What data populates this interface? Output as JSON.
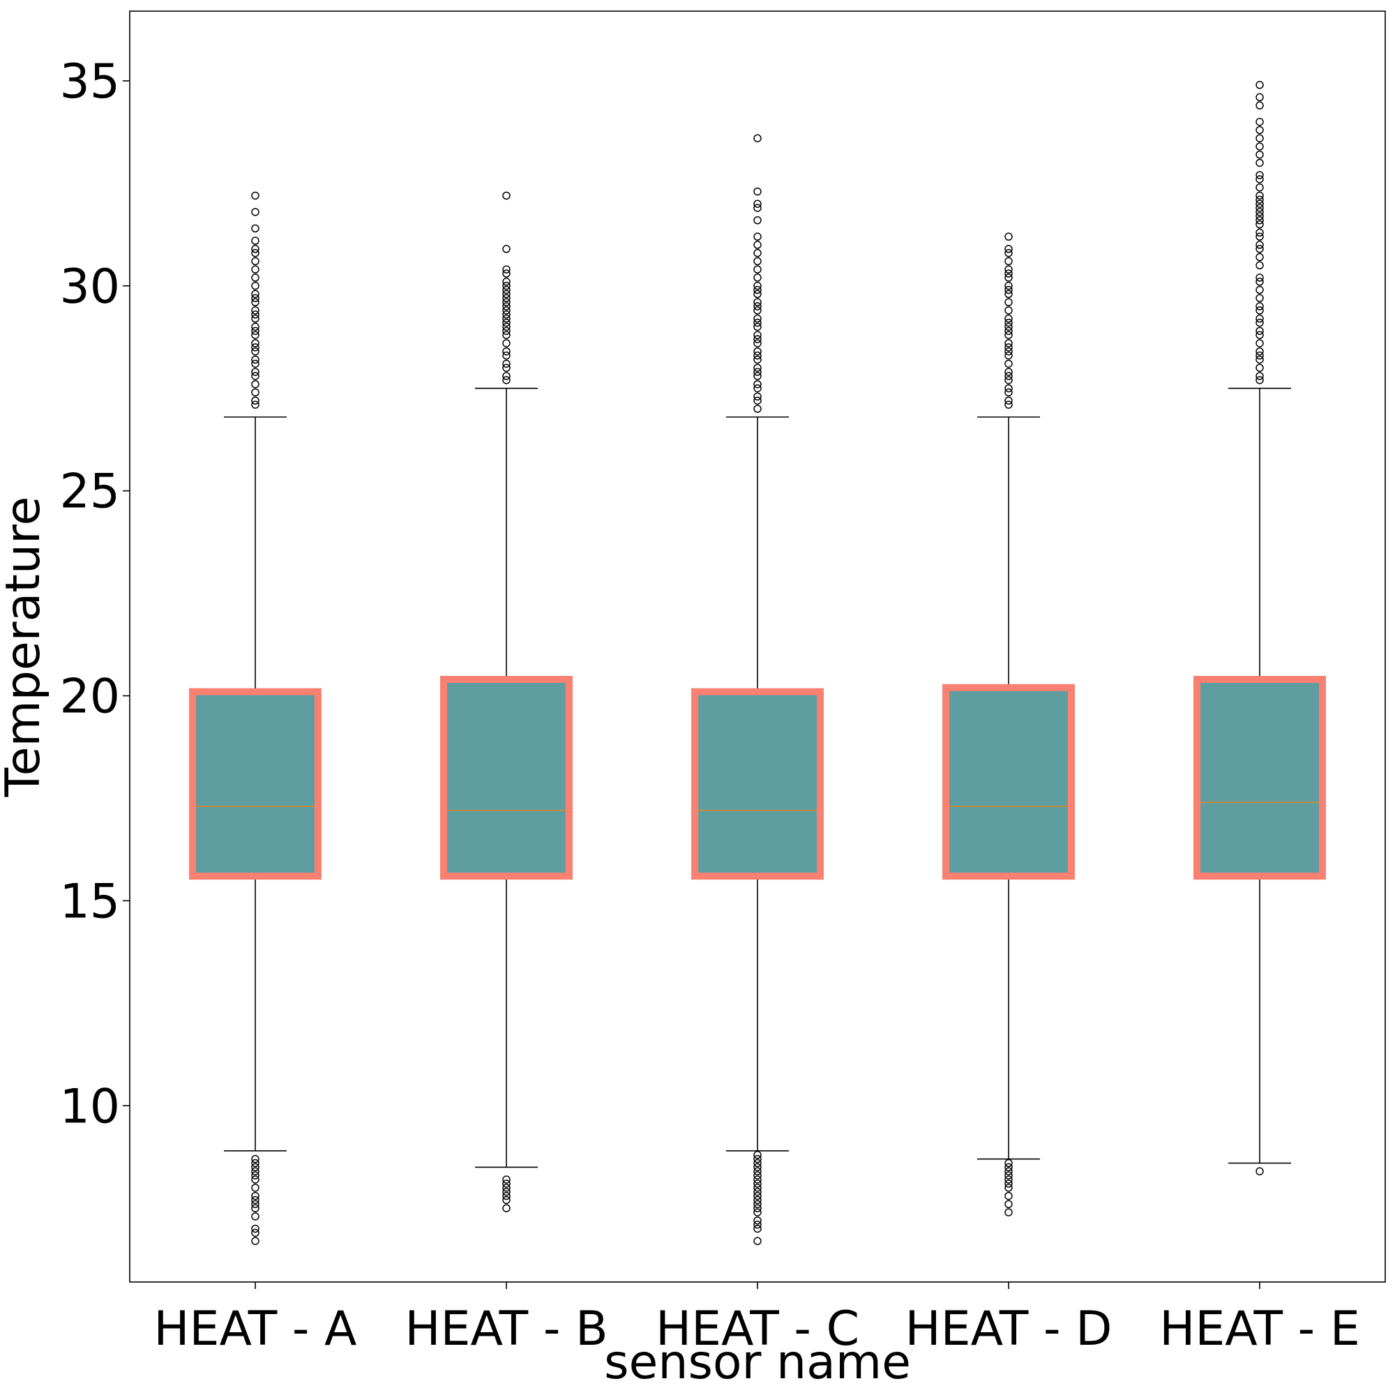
{
  "chart_data": {
    "type": "box",
    "xlabel": "sensor name",
    "ylabel": "Temperature",
    "ylim": [
      5.7,
      36.7
    ],
    "yticks": [
      10,
      15,
      20,
      25,
      30,
      35
    ],
    "grid": false,
    "colors": {
      "box_fill": "#5f9ea0",
      "box_edge": "#fa8072",
      "median": "#d4892f",
      "whisker": "#000000"
    },
    "categories": [
      "HEAT - A",
      "HEAT - B",
      "HEAT - C",
      "HEAT - D",
      "HEAT - E"
    ],
    "boxes": [
      {
        "label": "HEAT - A",
        "whisker_low": 8.9,
        "q1": 15.6,
        "median": 17.3,
        "q3": 20.1,
        "whisker_high": 26.8,
        "outliers_high": [
          27.1,
          27.2,
          27.4,
          27.6,
          27.8,
          27.9,
          28.1,
          28.2,
          28.4,
          28.5,
          28.6,
          28.8,
          28.9,
          29.0,
          29.2,
          29.3,
          29.4,
          29.6,
          29.7,
          29.8,
          30.0,
          30.2,
          30.4,
          30.6,
          30.8,
          30.9,
          31.1,
          31.4,
          31.8,
          32.2
        ],
        "outliers_low": [
          8.7,
          8.6,
          8.5,
          8.4,
          8.3,
          8.2,
          8.0,
          7.8,
          7.7,
          7.6,
          7.5,
          7.3,
          7.0,
          6.9,
          6.7
        ]
      },
      {
        "label": "HEAT - B",
        "whisker_low": 8.5,
        "q1": 15.6,
        "median": 17.2,
        "q3": 20.4,
        "whisker_high": 27.5,
        "outliers_high": [
          27.7,
          27.8,
          28.0,
          28.1,
          28.3,
          28.4,
          28.6,
          28.8,
          28.9,
          29.0,
          29.1,
          29.2,
          29.3,
          29.4,
          29.5,
          29.6,
          29.7,
          29.8,
          29.9,
          30.0,
          30.1,
          30.3,
          30.4,
          30.9,
          32.2
        ],
        "outliers_low": [
          8.2,
          8.1,
          8.0,
          7.9,
          7.8,
          7.7,
          7.5
        ]
      },
      {
        "label": "HEAT - C",
        "whisker_low": 8.9,
        "q1": 15.6,
        "median": 17.2,
        "q3": 20.1,
        "whisker_high": 26.8,
        "outliers_high": [
          27.0,
          27.2,
          27.3,
          27.5,
          27.6,
          27.8,
          27.9,
          28.0,
          28.2,
          28.3,
          28.4,
          28.6,
          28.7,
          28.8,
          29.0,
          29.1,
          29.2,
          29.4,
          29.5,
          29.6,
          29.8,
          29.9,
          30.0,
          30.2,
          30.4,
          30.6,
          30.8,
          31.0,
          31.2,
          31.6,
          31.9,
          32.0,
          32.3,
          33.6
        ],
        "outliers_low": [
          8.8,
          8.7,
          8.6,
          8.5,
          8.4,
          8.3,
          8.2,
          8.1,
          8.0,
          7.9,
          7.8,
          7.7,
          7.6,
          7.5,
          7.4,
          7.2,
          7.1,
          7.0,
          6.7
        ]
      },
      {
        "label": "HEAT - D",
        "whisker_low": 8.7,
        "q1": 15.6,
        "median": 17.3,
        "q3": 20.2,
        "whisker_high": 26.8,
        "outliers_high": [
          27.1,
          27.2,
          27.4,
          27.5,
          27.7,
          27.8,
          27.9,
          28.1,
          28.3,
          28.4,
          28.5,
          28.6,
          28.8,
          28.9,
          29.0,
          29.1,
          29.2,
          29.4,
          29.6,
          29.8,
          29.9,
          30.0,
          30.2,
          30.3,
          30.4,
          30.6,
          30.8,
          30.9,
          31.2
        ],
        "outliers_low": [
          8.6,
          8.5,
          8.4,
          8.3,
          8.2,
          8.1,
          8.0,
          7.8,
          7.6,
          7.4
        ]
      },
      {
        "label": "HEAT - E",
        "whisker_low": 8.6,
        "q1": 15.6,
        "median": 17.4,
        "q3": 20.4,
        "whisker_high": 27.5,
        "outliers_high": [
          27.7,
          27.8,
          28.0,
          28.2,
          28.3,
          28.4,
          28.6,
          28.8,
          28.9,
          29.1,
          29.2,
          29.4,
          29.5,
          29.7,
          29.9,
          30.1,
          30.2,
          30.5,
          30.7,
          30.9,
          31.0,
          31.2,
          31.3,
          31.5,
          31.6,
          31.7,
          31.8,
          31.9,
          32.0,
          32.1,
          32.2,
          32.4,
          32.6,
          32.7,
          33.0,
          33.2,
          33.4,
          33.6,
          33.8,
          34.0,
          34.4,
          34.6,
          34.9
        ],
        "outliers_low": [
          8.4
        ]
      }
    ]
  }
}
